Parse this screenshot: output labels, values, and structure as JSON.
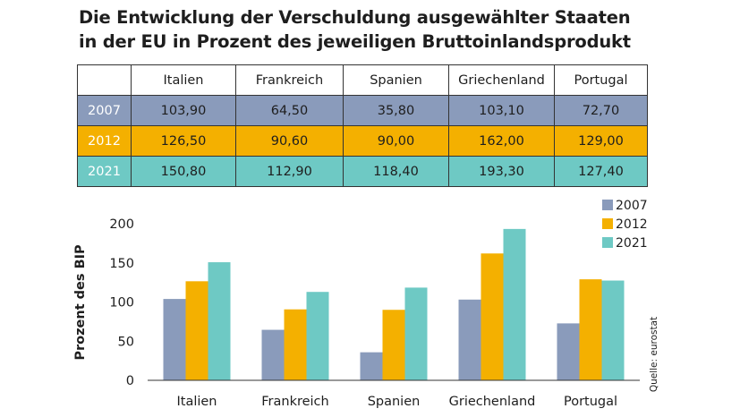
{
  "title_line1": "Die Entwicklung der Verschuldung ausgewählter Staaten",
  "title_line2": "in der EU in Prozent des jeweiligen Bruttoinlandsprodukt",
  "table": {
    "columns": [
      "Italien",
      "Frankreich",
      "Spanien",
      "Griechenland",
      "Portugal"
    ],
    "rows": [
      {
        "year": "2007",
        "values": [
          "103,90",
          "64,50",
          "35,80",
          "103,10",
          "72,70"
        ]
      },
      {
        "year": "2012",
        "values": [
          "126,50",
          "90,60",
          "90,00",
          "162,00",
          "129,00"
        ]
      },
      {
        "year": "2021",
        "values": [
          "150,80",
          "112,90",
          "118,40",
          "193,30",
          "127,40"
        ]
      }
    ]
  },
  "source": "Quelle: eurostat",
  "colors": {
    "2007": "#8a9bbb",
    "2012": "#f4b000",
    "2021": "#6ec9c4"
  },
  "chart_data": {
    "type": "bar",
    "categories": [
      "Italien",
      "Frankreich",
      "Spanien",
      "Griechenland",
      "Portugal"
    ],
    "series": [
      {
        "name": "2007",
        "values": [
          103.9,
          64.5,
          35.8,
          103.1,
          72.7
        ]
      },
      {
        "name": "2012",
        "values": [
          126.5,
          90.6,
          90.0,
          162.0,
          129.0
        ]
      },
      {
        "name": "2021",
        "values": [
          150.8,
          112.9,
          118.4,
          193.3,
          127.4
        ]
      }
    ],
    "ylabel": "Prozent des BIP",
    "yticks": [
      0,
      50,
      100,
      150,
      200
    ],
    "ylim": [
      0,
      200
    ],
    "grid": false,
    "legend": "top-right"
  }
}
